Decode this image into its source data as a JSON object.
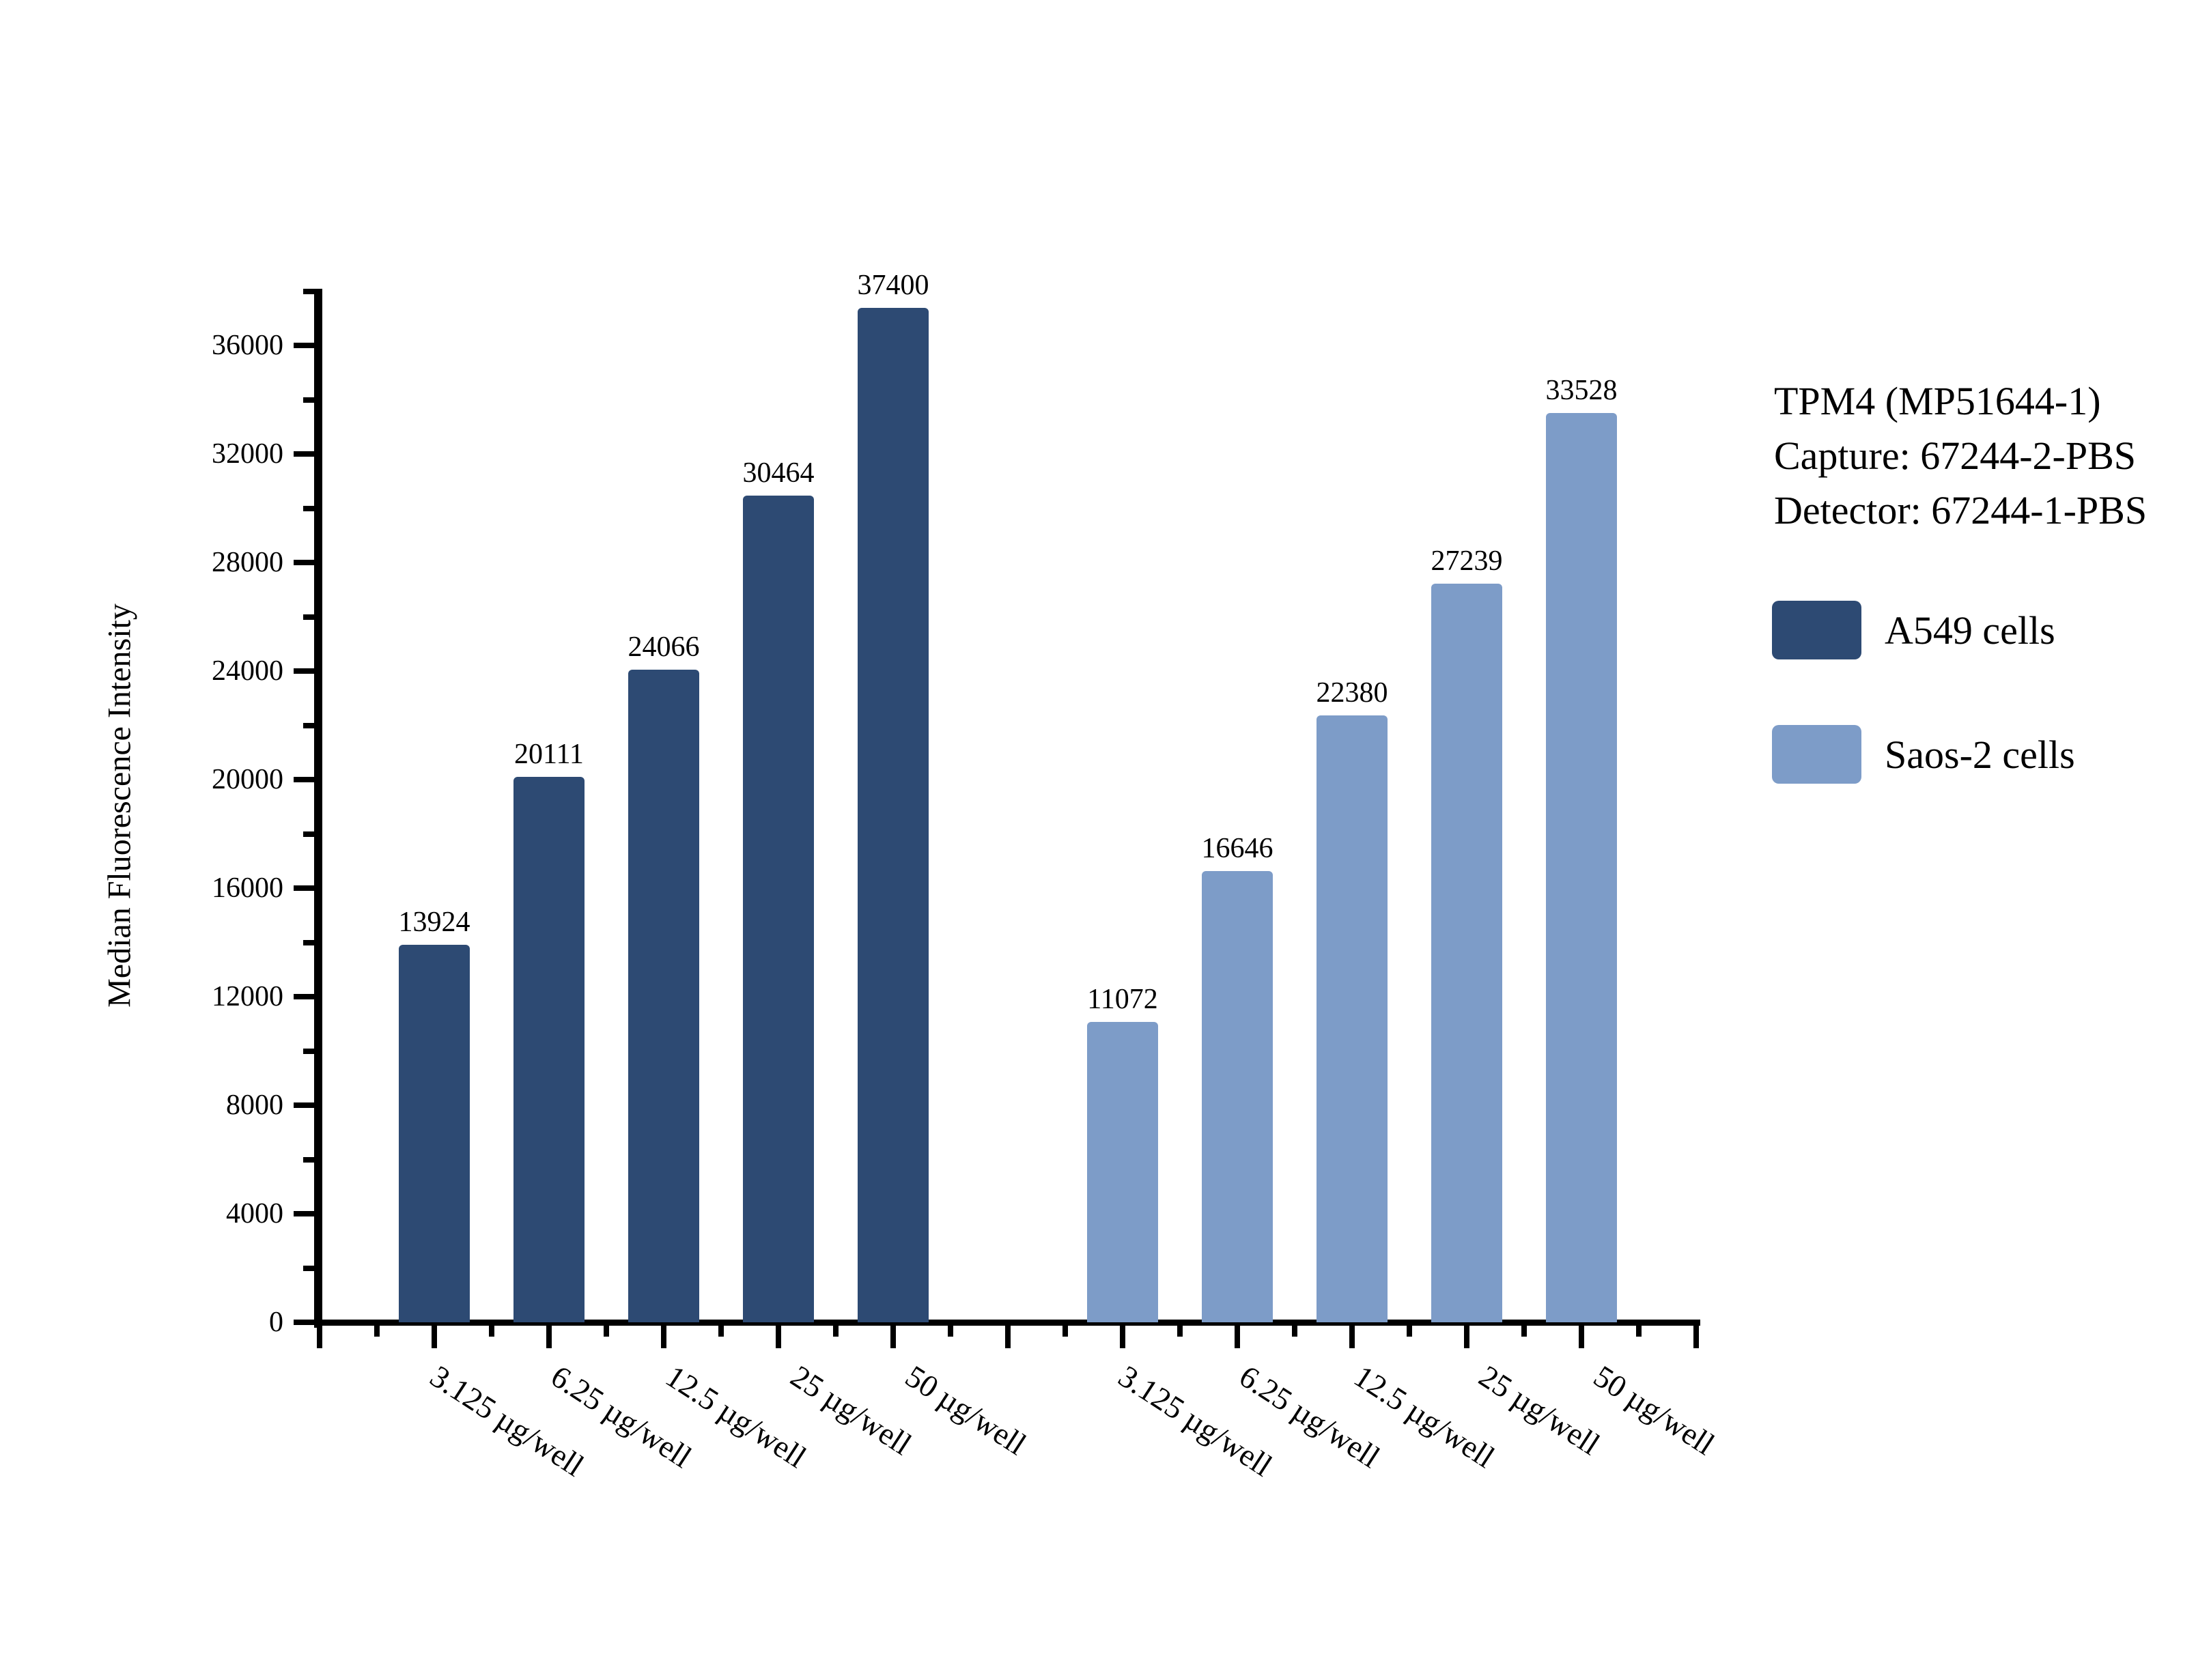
{
  "figure": {
    "background": "#ffffff"
  },
  "chart_data": {
    "type": "bar",
    "ylabel": "Median Fluorescence Intensity",
    "ylim": [
      0,
      38000
    ],
    "yticks": [
      0,
      4000,
      8000,
      12000,
      16000,
      20000,
      24000,
      28000,
      32000,
      36000
    ],
    "yticks_minor": [
      2000,
      6000,
      10000,
      14000,
      18000,
      22000,
      26000,
      30000,
      34000,
      38000
    ],
    "categories": [
      "3.125 µg/well",
      "6.25 µg/well",
      "12.5 µg/well",
      "25 µg/well",
      "50 µg/well"
    ],
    "series": [
      {
        "name": "A549 cells",
        "color": "#2D4A73",
        "values": [
          13924,
          20111,
          24066,
          30464,
          37400
        ]
      },
      {
        "name": "Saos-2 cells",
        "color": "#7D9CC8",
        "values": [
          11072,
          16646,
          22380,
          27239,
          33528
        ]
      }
    ],
    "annotation_lines": [
      "TPM4 (MP51644-1)",
      "Capture: 67244-2-PBS",
      "Detector: 67244-1-PBS"
    ],
    "bar_value_labels": true,
    "grid": false,
    "legend_position": "right"
  }
}
